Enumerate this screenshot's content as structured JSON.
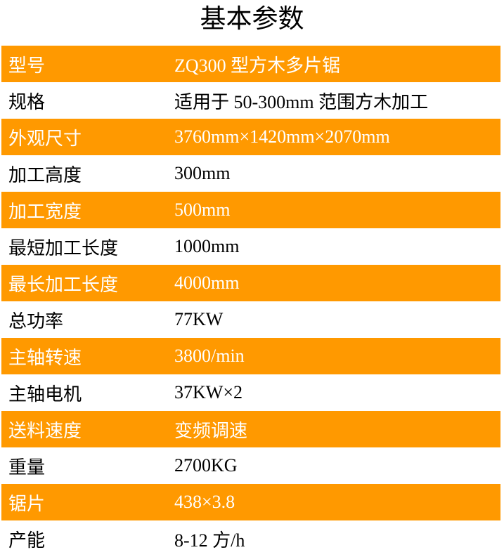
{
  "title": "基本参数",
  "colors": {
    "stripe": "#FF9900",
    "stripe_text": "#FFFFFF",
    "text": "#000000"
  },
  "rows": [
    {
      "label": "型号",
      "value": "ZQ300 型方木多片锯"
    },
    {
      "label": "规格",
      "value": "适用于 50-300mm 范围方木加工"
    },
    {
      "label": "外观尺寸",
      "value": "3760mm×1420mm×2070mm"
    },
    {
      "label": "加工高度",
      "value": "300mm"
    },
    {
      "label": "加工宽度",
      "value": "500mm"
    },
    {
      "label": "最短加工长度",
      "value": "1000mm"
    },
    {
      "label": "最长加工长度",
      "value": "4000mm"
    },
    {
      "label": "总功率",
      "value": "77KW"
    },
    {
      "label": "主轴转速",
      "value": "3800/min"
    },
    {
      "label": "主轴电机",
      "value": "37KW×2"
    },
    {
      "label": "送料速度",
      "value": "变频调速"
    },
    {
      "label": "重量",
      "value": "2700KG"
    },
    {
      "label": "锯片",
      "value": "438×3.8"
    },
    {
      "label": "产能",
      "value": "8-12 方/h"
    }
  ]
}
